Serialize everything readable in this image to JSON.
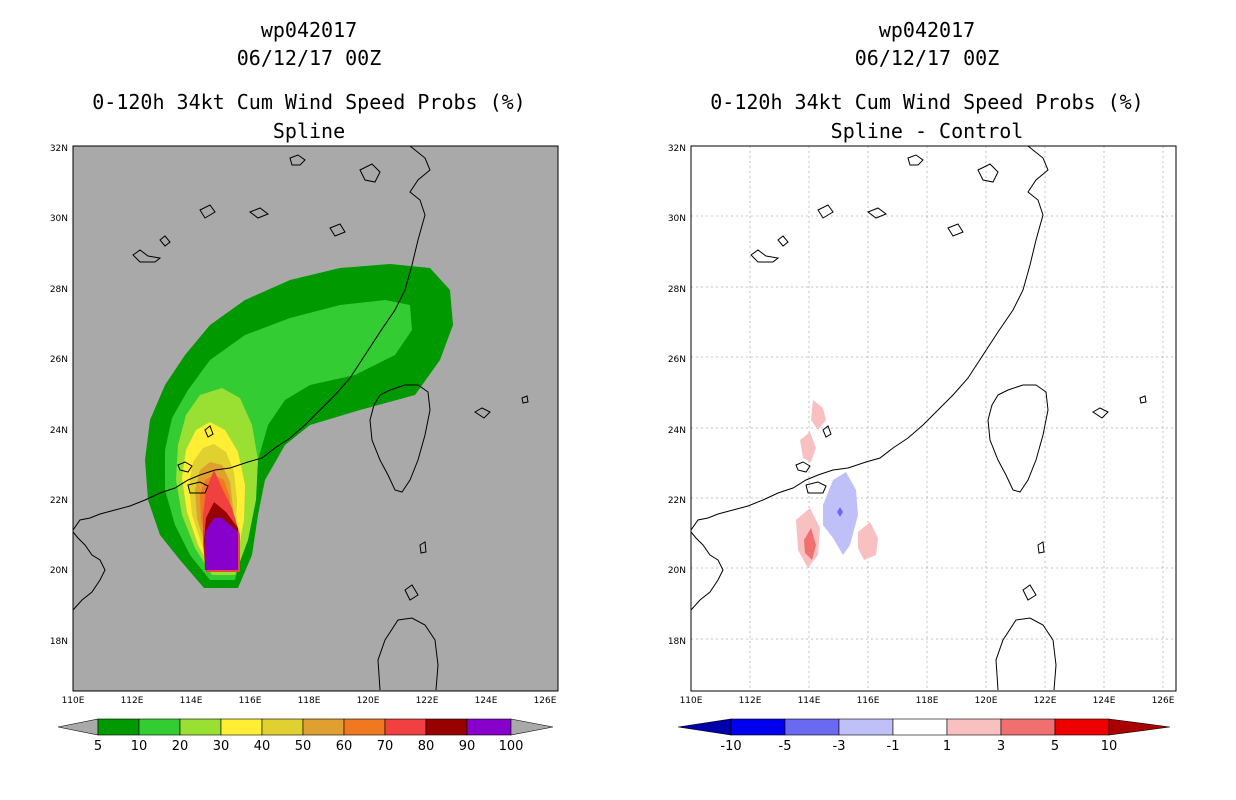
{
  "colors": {
    "map_bg_left": "#a9a9a9",
    "map_bg_right": "#ffffff",
    "coast": "#000000",
    "grid": "#b0b0b0"
  },
  "axes": {
    "lon_labels": [
      "110E",
      "112E",
      "114E",
      "116E",
      "118E",
      "120E",
      "122E",
      "124E",
      "126E"
    ],
    "lat_labels": [
      "18N",
      "20N",
      "22N",
      "24N",
      "26N",
      "28N",
      "30N",
      "32N"
    ],
    "lon_range": [
      110,
      126.5
    ],
    "lat_range": [
      16.5,
      32
    ]
  },
  "left": {
    "storm_id": "wp042017",
    "datetime": "06/12/17 00Z",
    "product": "0-120h 34kt Cum Wind Speed Probs (%)",
    "subtitle": "Spline",
    "colorbar": {
      "labels": [
        "5",
        "10",
        "20",
        "30",
        "40",
        "50",
        "60",
        "70",
        "80",
        "90",
        "100"
      ],
      "colors": [
        "#a9a9a9",
        "#009900",
        "#33cc33",
        "#99e033",
        "#ffee33",
        "#e0d030",
        "#e0a030",
        "#f07820",
        "#f04040",
        "#990000",
        "#8800cc",
        "#a9a9a9"
      ]
    },
    "contour_levels": [
      {
        "level": 5,
        "color": "#009900"
      },
      {
        "level": 10,
        "color": "#33cc33"
      },
      {
        "level": 20,
        "color": "#99e033"
      },
      {
        "level": 30,
        "color": "#ffee33"
      },
      {
        "level": 40,
        "color": "#e0d030"
      },
      {
        "level": 50,
        "color": "#e0a030"
      },
      {
        "level": 60,
        "color": "#f07820"
      },
      {
        "level": 70,
        "color": "#f04040"
      },
      {
        "level": 80,
        "color": "#990000"
      },
      {
        "level": 90,
        "color": "#8800cc"
      }
    ]
  },
  "right": {
    "storm_id": "wp042017",
    "datetime": "06/12/17 00Z",
    "product": "0-120h 34kt Cum Wind Speed Probs (%)",
    "subtitle": "Spline - Control",
    "colorbar": {
      "labels": [
        "-10",
        "-5",
        "-3",
        "-1",
        "1",
        "3",
        "5",
        "10"
      ],
      "colors": [
        "#0000aa",
        "#0000ee",
        "#6a6af0",
        "#c0c0f8",
        "#ffffff",
        "#f8c0c0",
        "#f07070",
        "#ee0000",
        "#aa0000"
      ]
    },
    "diff_regions": [
      {
        "sign": "positive",
        "color": "#f8c0c0",
        "value_class": "1 to 3"
      },
      {
        "sign": "positive",
        "color": "#f07070",
        "value_class": "3 to 5"
      },
      {
        "sign": "negative",
        "color": "#c0c0f8",
        "value_class": "-1 to -3"
      },
      {
        "sign": "negative",
        "color": "#6a6af0",
        "value_class": "-3 to -5"
      }
    ]
  }
}
